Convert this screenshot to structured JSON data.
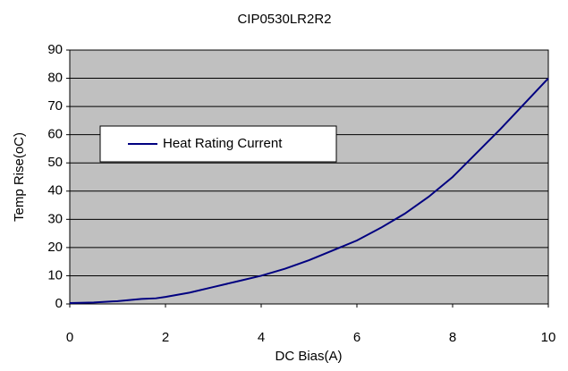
{
  "chart_data": {
    "type": "line",
    "title": "CIP0530LR2R2",
    "x_label": "DC Bias(A)",
    "y_label": "Temp Rise(oC)",
    "x": [
      0,
      0.5,
      1,
      1.5,
      1.8,
      2,
      2.5,
      3,
      3.5,
      4,
      4.5,
      5,
      5.5,
      6,
      6.5,
      7,
      7.5,
      8,
      8.5,
      9,
      9.5,
      10
    ],
    "series": [
      {
        "name": "Heat Rating Current",
        "color": "#000080",
        "values": [
          0.3,
          0.5,
          1,
          1.8,
          2,
          2.5,
          4,
          6,
          8,
          10,
          12.5,
          15.5,
          19,
          22.5,
          27,
          32,
          38,
          45,
          53.5,
          62,
          71,
          80
        ]
      }
    ],
    "xlim": [
      0,
      10
    ],
    "xticks": [
      0,
      2,
      4,
      6,
      8,
      10
    ],
    "ylim": [
      0,
      90
    ],
    "yticks": [
      0,
      10,
      20,
      30,
      40,
      50,
      60,
      70,
      80,
      90
    ],
    "grid": true,
    "legend": "upper left"
  }
}
